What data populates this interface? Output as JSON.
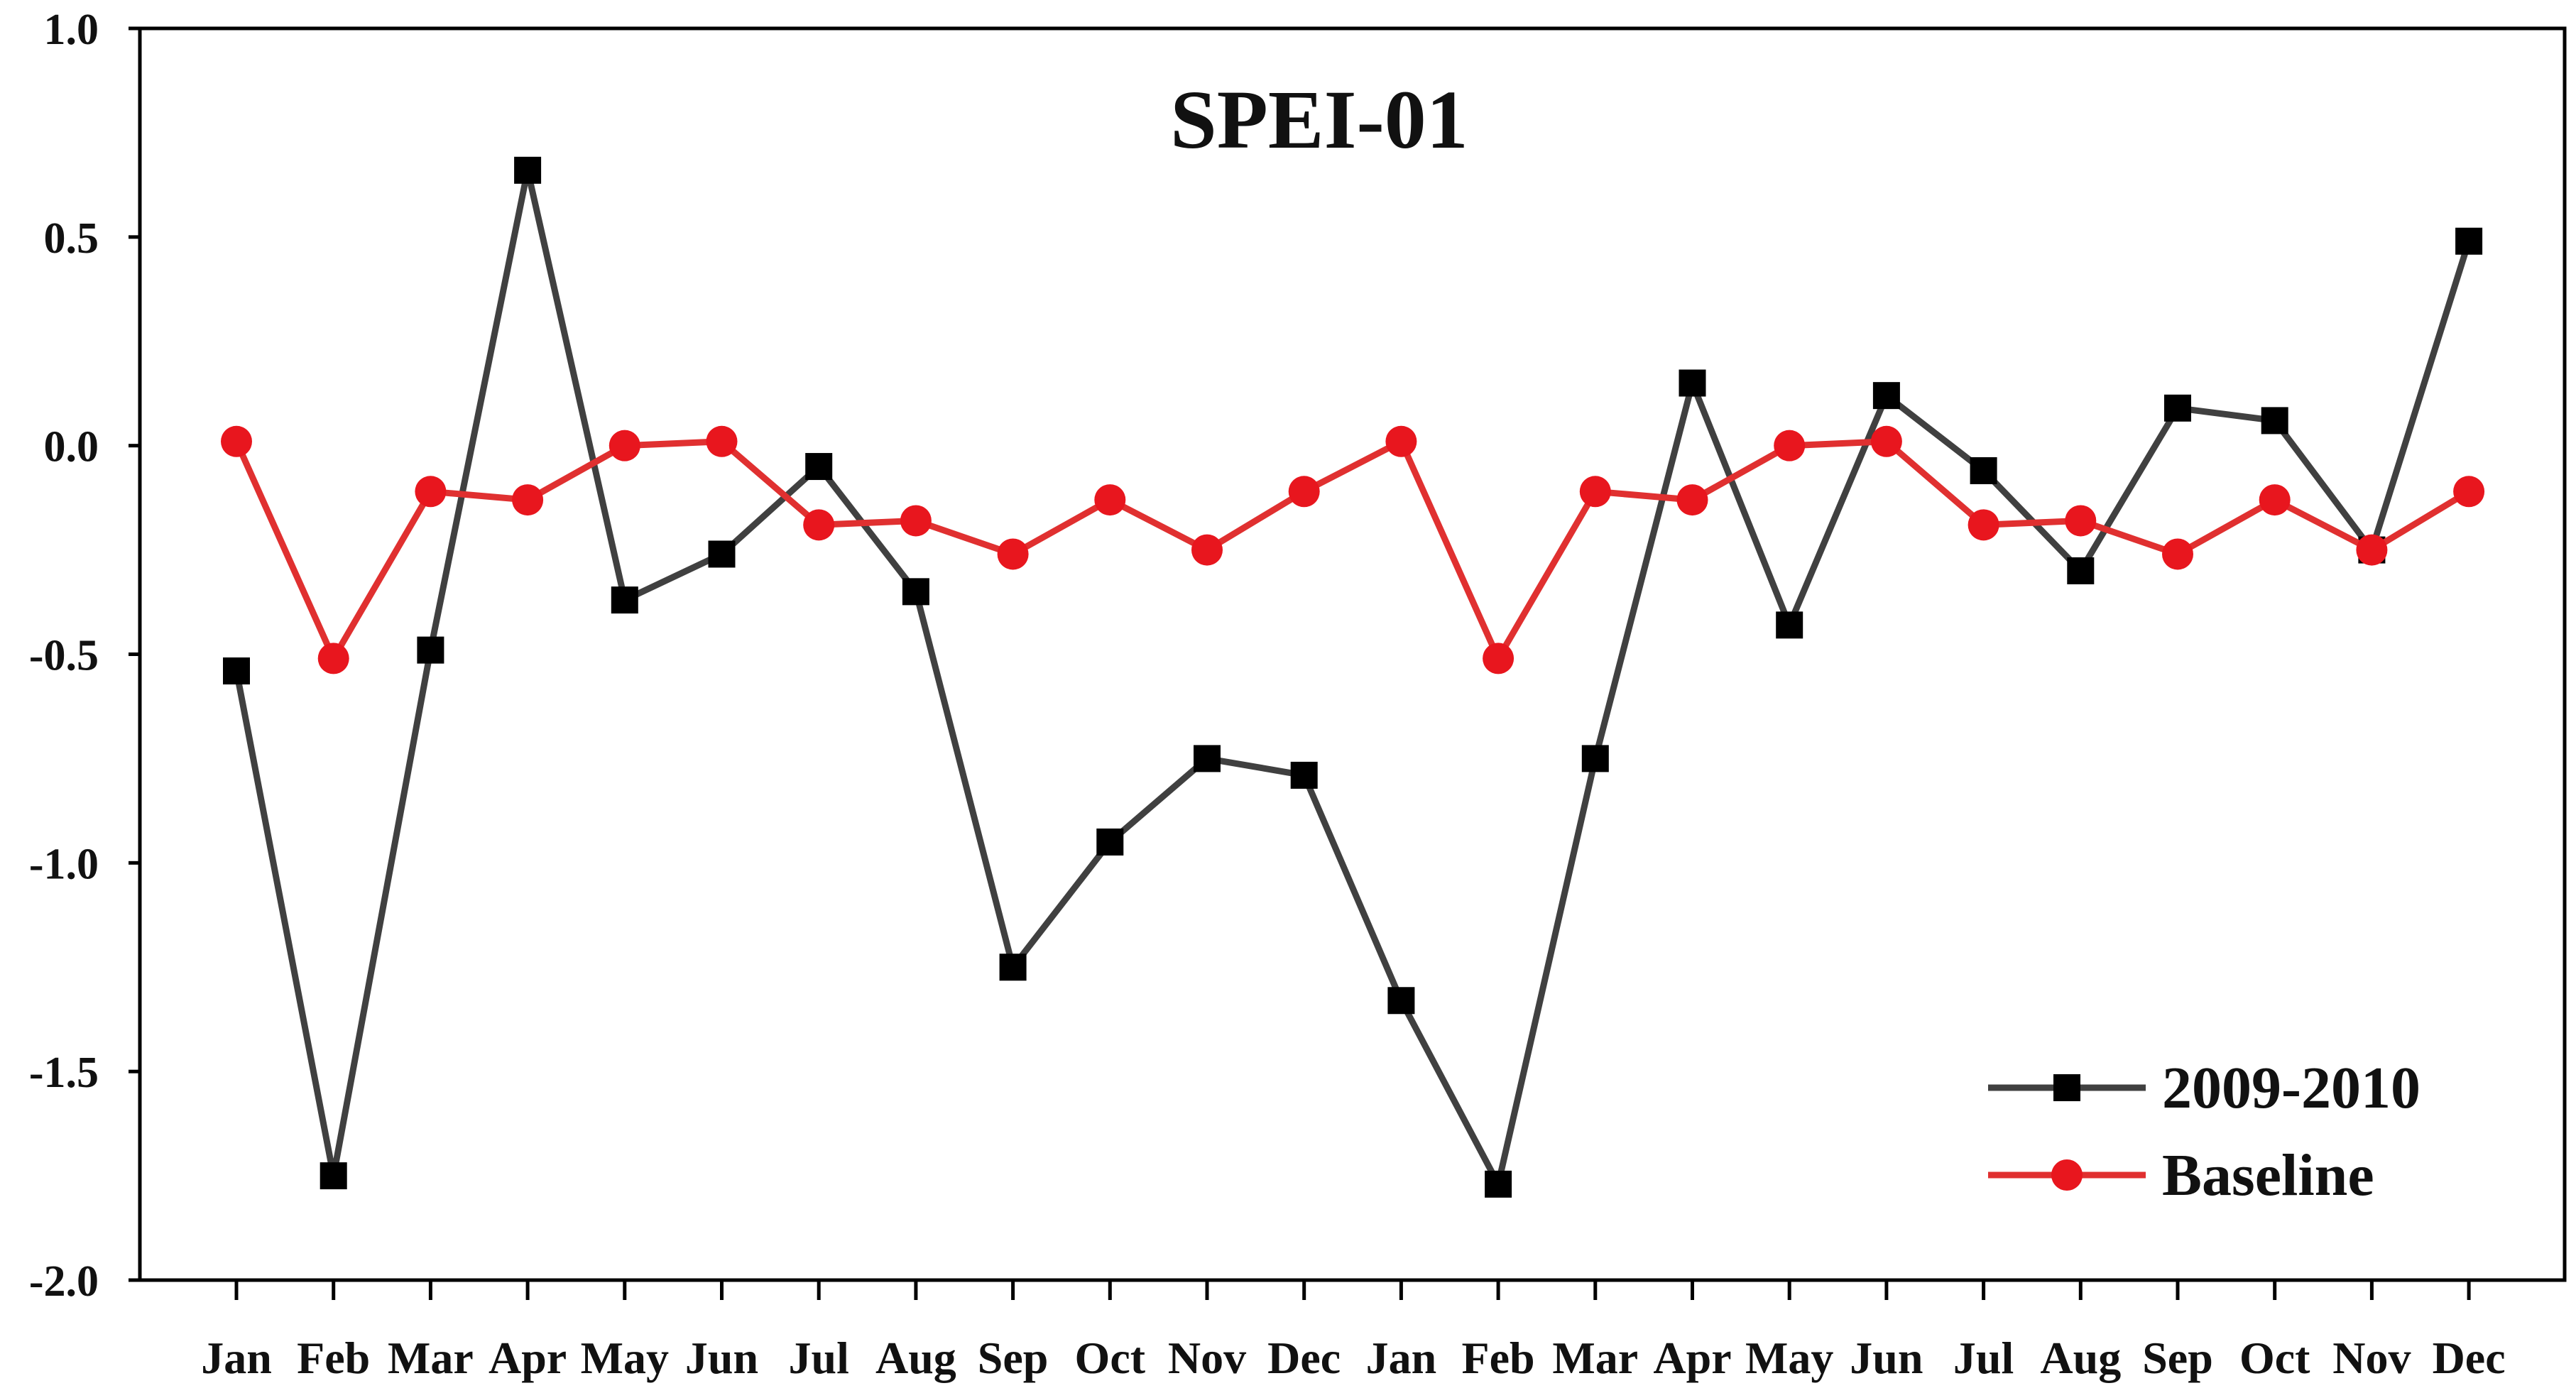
{
  "chart_data": {
    "type": "line",
    "title": "SPEI-01",
    "xlabel": "",
    "ylabel": "",
    "categories": [
      "Jan",
      "Feb",
      "Mar",
      "Apr",
      "May",
      "Jun",
      "Jul",
      "Aug",
      "Sep",
      "Oct",
      "Nov",
      "Dec",
      "Jan",
      "Feb",
      "Mar",
      "Apr",
      "May",
      "Jun",
      "Jul",
      "Aug",
      "Sep",
      "Oct",
      "Nov",
      "Dec"
    ],
    "ylim": [
      -2.0,
      1.0
    ],
    "yticks": [
      -2.0,
      -1.5,
      -1.0,
      -0.5,
      0.0,
      0.5,
      1.0
    ],
    "ytick_labels": [
      "-2.0",
      "-1.5",
      "-1.0",
      "-0.5",
      "0.0",
      "0.5",
      "1.0"
    ],
    "grid": false,
    "legend_position": "bottom-right",
    "series": [
      {
        "name": "2009-2010",
        "color": "#404040",
        "marker_color": "#000000",
        "marker": "square",
        "values": [
          -0.54,
          -1.75,
          -0.49,
          0.66,
          -0.37,
          -0.26,
          -0.05,
          -0.35,
          -1.25,
          -0.95,
          -0.75,
          -0.79,
          -1.33,
          -1.77,
          -0.75,
          0.15,
          -0.43,
          0.12,
          -0.06,
          -0.3,
          0.09,
          0.06,
          -0.25,
          0.49
        ]
      },
      {
        "name": "Baseline",
        "color": "#e03030",
        "marker_color": "#e8161e",
        "marker": "circle",
        "values": [
          0.01,
          -0.51,
          -0.11,
          -0.13,
          0.0,
          0.01,
          -0.19,
          -0.18,
          -0.26,
          -0.13,
          -0.25,
          -0.11,
          0.01,
          -0.51,
          -0.11,
          -0.13,
          0.0,
          0.01,
          -0.19,
          -0.18,
          -0.26,
          -0.13,
          -0.25,
          -0.11
        ]
      }
    ]
  }
}
